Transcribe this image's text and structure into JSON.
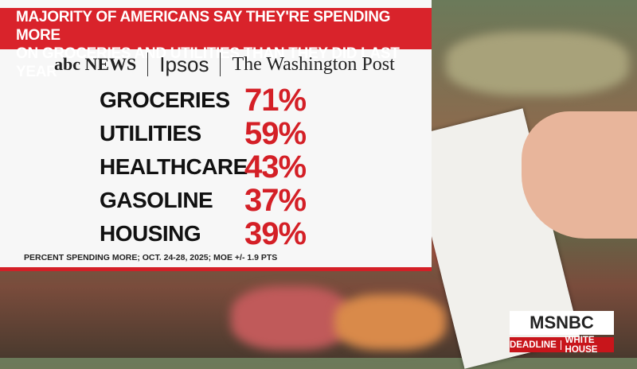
{
  "headline": {
    "lines": [
      "MAJORITY OF AMERICANS SAY THEY'RE SPENDING MORE",
      "ON GROCERIES AND UTILITIES THAN THEY DID LAST YEAR"
    ]
  },
  "sponsors": [
    "abc NEWS",
    "Ipsos",
    "The Washington Post"
  ],
  "items": [
    {
      "label": "GROCERIES",
      "value": "71%"
    },
    {
      "label": "UTILITIES",
      "value": "59%"
    },
    {
      "label": "HEALTHCARE",
      "value": "43%"
    },
    {
      "label": "GASOLINE",
      "value": "37%"
    },
    {
      "label": "HOUSING",
      "value": "39%"
    }
  ],
  "footnote": "PERCENT SPENDING MORE; OCT. 24-28, 2025; MOE +/- 1.9 PTS",
  "branding": {
    "network": "MSNBC",
    "show": [
      "DEADLINE",
      "WHITE HOUSE"
    ]
  }
}
